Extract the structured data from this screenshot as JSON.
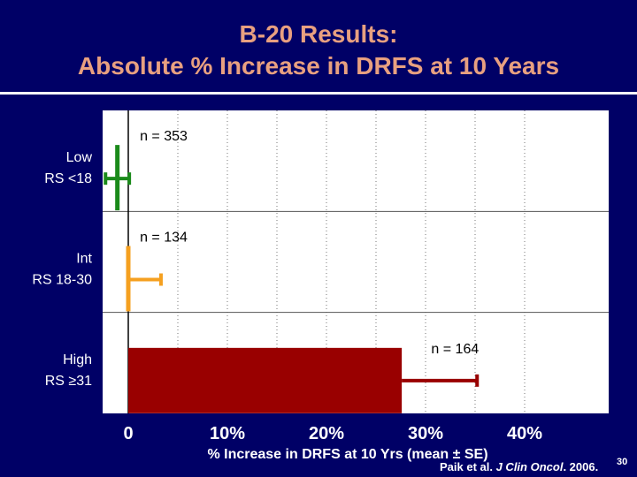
{
  "slide": {
    "title_line1": "B-20 Results:",
    "title_line2": "Absolute % Increase in DRFS at 10 Years",
    "citation_prefix": "Paik et al. ",
    "citation_journal": "J Clin Oncol",
    "citation_suffix": ". 2006.",
    "page_number": "30"
  },
  "colors": {
    "background": "#000066",
    "title": "#E8A080",
    "low": "#1A8A1A",
    "int": "#F5A020",
    "high": "#990000",
    "plot_bg": "#ffffff"
  },
  "chart_data": {
    "type": "bar",
    "orientation": "horizontal",
    "xlabel": "% Increase in DRFS at 10 Yrs (mean ± SE)",
    "xlim": [
      0,
      45
    ],
    "xticks": [
      {
        "value": 0,
        "label": "0"
      },
      {
        "value": 10,
        "label": "10%"
      },
      {
        "value": 20,
        "label": "20%"
      },
      {
        "value": 30,
        "label": "30%"
      },
      {
        "value": 40,
        "label": "40%"
      }
    ],
    "minor_gridlines": [
      5,
      10,
      15,
      20,
      25,
      30,
      35,
      40
    ],
    "categories": [
      {
        "line1": "Low",
        "line2": "RS <18"
      },
      {
        "line1": "Int",
        "line2": "RS 18-30"
      },
      {
        "line1": "High",
        "line2": "RS ≥31"
      }
    ],
    "values": [
      -1.1,
      0.0,
      27.6
    ],
    "error_plus": [
      1.2,
      3.3,
      7.6
    ],
    "error_minus": [
      1.2,
      0.0,
      0.0
    ],
    "n_labels": [
      "n = 353",
      "n = 134",
      "n = 164"
    ],
    "colors": [
      "#1A8A1A",
      "#F5A020",
      "#990000"
    ]
  }
}
